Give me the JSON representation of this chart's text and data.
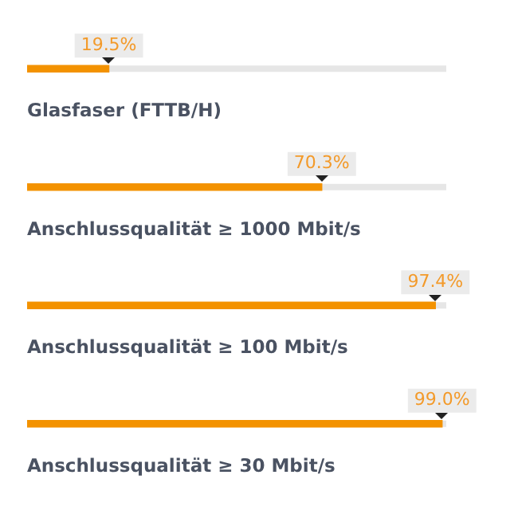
{
  "chart_data": {
    "type": "bar",
    "orientation": "horizontal",
    "categories": [
      "Glasfaser (FTTB/H)",
      "Anschlussqualität ≥ 1000 Mbit/s",
      "Anschlussqualität ≥ 100 Mbit/s",
      "Anschlussqualität ≥ 30 Mbit/s"
    ],
    "values": [
      19.5,
      70.3,
      97.4,
      99.0
    ],
    "value_labels": [
      "19.5%",
      "70.3%",
      "97.4%",
      "99.0%"
    ],
    "color": "#f39200",
    "tick_labels": false,
    "legend": false
  }
}
